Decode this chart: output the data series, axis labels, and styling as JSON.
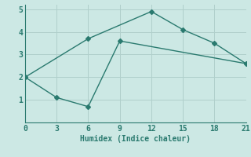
{
  "line1_x": [
    0,
    6,
    12,
    15,
    18,
    21
  ],
  "line1_y": [
    2.0,
    3.7,
    4.9,
    4.1,
    3.5,
    2.6
  ],
  "line2_x": [
    0,
    3,
    6,
    9,
    21
  ],
  "line2_y": [
    2.0,
    1.1,
    0.7,
    3.6,
    2.6
  ],
  "color": "#2a7a6f",
  "bg_color": "#cce8e4",
  "grid_color": "#b0cfcb",
  "xlabel": "Humidex (Indice chaleur)",
  "xlim": [
    0,
    21
  ],
  "ylim": [
    0,
    5.2
  ],
  "xticks": [
    0,
    3,
    6,
    9,
    12,
    15,
    18,
    21
  ],
  "yticks": [
    1,
    2,
    3,
    4,
    5
  ],
  "marker": "D",
  "markersize": 3,
  "linewidth": 1.0
}
